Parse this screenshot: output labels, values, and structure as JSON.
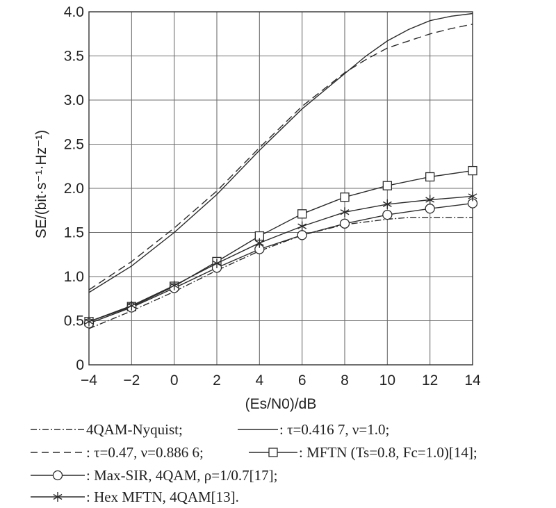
{
  "chart_data": {
    "type": "line",
    "xlabel": "(Es/N0)/dB",
    "ylabel": "SE/(bit·s⁻¹·Hz⁻¹)",
    "xlim": [
      -4,
      14
    ],
    "ylim": [
      0,
      4.0
    ],
    "x_ticks": [
      "−4",
      "−2",
      "0",
      "2",
      "4",
      "6",
      "8",
      "10",
      "12",
      "14"
    ],
    "y_ticks": [
      "0",
      "0.5",
      "1.0",
      "1.5",
      "2.0",
      "2.5",
      "3.0",
      "3.5",
      "4.0"
    ],
    "grid": true,
    "legend_position": "bottom",
    "series": [
      {
        "id": "nyquist",
        "name": "4QAM-Nyquist;",
        "style": "dash-dot",
        "marker": "none",
        "x": [
          -4,
          -2,
          0,
          2,
          4,
          6,
          8,
          10,
          11,
          12,
          14
        ],
        "y": [
          0.41,
          0.61,
          0.83,
          1.07,
          1.29,
          1.47,
          1.59,
          1.65,
          1.67,
          1.67,
          1.67
        ]
      },
      {
        "id": "tau4167",
        "name": ": τ=0.416 7, ν=1.0;",
        "style": "solid",
        "marker": "none",
        "x": [
          -4,
          -2,
          0,
          2,
          4,
          6,
          8,
          9,
          10,
          11,
          12,
          13,
          14
        ],
        "y": [
          0.82,
          1.12,
          1.5,
          1.93,
          2.43,
          2.9,
          3.3,
          3.5,
          3.67,
          3.8,
          3.9,
          3.95,
          3.98
        ]
      },
      {
        "id": "tau47",
        "name": ": τ=0.47, ν=0.886 6;",
        "style": "dashed",
        "marker": "none",
        "x": [
          -4,
          -2,
          0,
          2,
          4,
          6,
          8,
          9,
          10,
          11,
          12,
          13,
          14
        ],
        "y": [
          0.85,
          1.17,
          1.55,
          1.97,
          2.46,
          2.93,
          3.31,
          3.46,
          3.59,
          3.67,
          3.75,
          3.81,
          3.86
        ]
      },
      {
        "id": "mftn",
        "name": ": MFTN (Ts=0.8, Fc=1.0)[14];",
        "style": "solid",
        "marker": "square",
        "x": [
          -4,
          -2,
          0,
          2,
          4,
          6,
          8,
          10,
          12,
          14
        ],
        "y": [
          0.49,
          0.66,
          0.89,
          1.17,
          1.46,
          1.71,
          1.9,
          2.03,
          2.13,
          2.2
        ]
      },
      {
        "id": "maxsir",
        "name": ": Max-SIR, 4QAM, ρ=1/0.7[17];",
        "style": "solid",
        "marker": "circle",
        "x": [
          -4,
          -2,
          0,
          2,
          4,
          6,
          8,
          10,
          12,
          14
        ],
        "y": [
          0.47,
          0.65,
          0.87,
          1.1,
          1.31,
          1.47,
          1.6,
          1.7,
          1.77,
          1.83
        ]
      },
      {
        "id": "hex",
        "name": ": Hex MFTN, 4QAM[13].",
        "style": "solid",
        "marker": "star",
        "x": [
          -4,
          -2,
          0,
          2,
          4,
          6,
          8,
          10,
          12,
          14
        ],
        "y": [
          0.49,
          0.67,
          0.9,
          1.15,
          1.38,
          1.57,
          1.73,
          1.82,
          1.87,
          1.91
        ]
      }
    ]
  }
}
